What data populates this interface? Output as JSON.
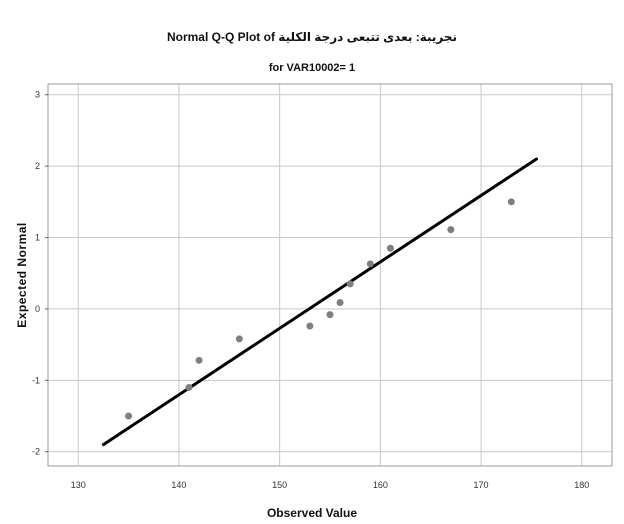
{
  "chart_data": {
    "type": "scatter",
    "title": "Normal Q-Q Plot of نجريبة: بعدى تتبعى درجة الكلية",
    "subtitle": "for VAR10002= 1",
    "xlabel": "Observed Value",
    "ylabel": "Expected Normal",
    "xlim": [
      127,
      183
    ],
    "ylim": [
      -2.2,
      3.15
    ],
    "xticks": [
      130,
      140,
      150,
      160,
      170,
      180
    ],
    "yticks": [
      -2,
      -1,
      0,
      1,
      2,
      3
    ],
    "xtick_labels": [
      "130",
      "140",
      "150",
      "160",
      "170",
      "180"
    ],
    "ytick_labels": [
      "-2",
      "-1",
      "0",
      "1",
      "2",
      "3"
    ],
    "grid": true,
    "points": [
      {
        "x": 135,
        "y": -1.5
      },
      {
        "x": 141,
        "y": -1.1
      },
      {
        "x": 142,
        "y": -0.72
      },
      {
        "x": 146,
        "y": -0.42
      },
      {
        "x": 153,
        "y": -0.24
      },
      {
        "x": 155,
        "y": -0.08
      },
      {
        "x": 156,
        "y": 0.09
      },
      {
        "x": 157,
        "y": 0.35
      },
      {
        "x": 159,
        "y": 0.63
      },
      {
        "x": 161,
        "y": 0.85
      },
      {
        "x": 167,
        "y": 1.11
      },
      {
        "x": 173,
        "y": 1.5
      }
    ],
    "reference_line": {
      "x": [
        132.5,
        175.5
      ],
      "y": [
        -1.9,
        2.1
      ]
    },
    "colors": {
      "points": "#7f7f7f",
      "line": "#000000",
      "grid": "#c8c8c8"
    }
  }
}
